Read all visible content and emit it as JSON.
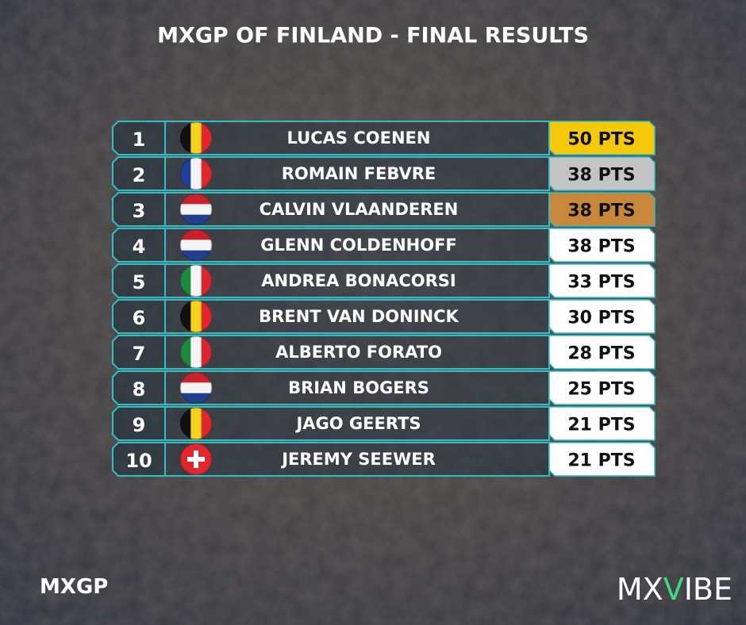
{
  "header": {
    "title": "MXGP OF FINLAND - FINAL RESULTS"
  },
  "table": {
    "rows": [
      {
        "position": "1",
        "rider": "LUCAS COENEN",
        "points": "50 PTS"
      },
      {
        "position": "2",
        "rider": "ROMAIN FEBVRE",
        "points": "38 PTS"
      },
      {
        "position": "3",
        "rider": "CALVIN VLAANDEREN",
        "points": "38 PTS"
      },
      {
        "position": "4",
        "rider": "GLENN COLDENHOFF",
        "points": "38 PTS"
      },
      {
        "position": "5",
        "rider": "ANDREA BONACORSI",
        "points": "33 PTS"
      },
      {
        "position": "6",
        "rider": "BRENT VAN DONINCK",
        "points": "30 PTS"
      },
      {
        "position": "7",
        "rider": "ALBERTO FORATO",
        "points": "28 PTS"
      },
      {
        "position": "8",
        "rider": "BRIAN BOGERS",
        "points": "25 PTS"
      },
      {
        "position": "9",
        "rider": "JAGO GEERTS",
        "points": "21 PTS"
      },
      {
        "position": "10",
        "rider": "JEREMY SEEWER",
        "points": "21 PTS"
      }
    ]
  },
  "footer": {
    "series": "MXGP",
    "logo": [
      "MX",
      "V",
      "IBE"
    ]
  }
}
